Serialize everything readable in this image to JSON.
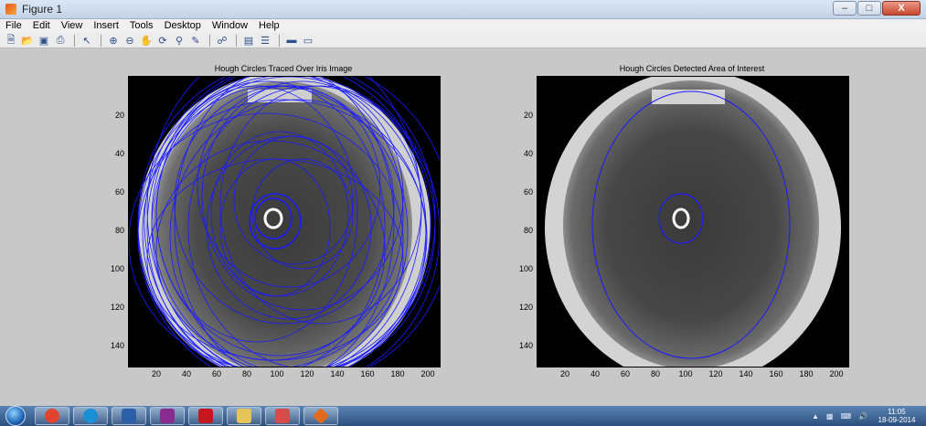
{
  "window": {
    "title": "Figure 1",
    "buttons": {
      "minimize": "–",
      "maximize": "□",
      "close": "X"
    }
  },
  "menu": [
    "File",
    "Edit",
    "View",
    "Insert",
    "Tools",
    "Desktop",
    "Window",
    "Help"
  ],
  "toolbar_icons": [
    "new-figure-icon",
    "open-file-icon",
    "save-icon",
    "print-icon",
    "arrow-icon",
    "zoom-in-icon",
    "zoom-out-icon",
    "pan-icon",
    "rotate-icon",
    "data-cursor-icon",
    "brush-icon",
    "link-icon",
    "colorbar-icon",
    "legend-icon",
    "hide-plot-tools-icon",
    "show-plot-tools-icon"
  ],
  "plots": [
    {
      "title": "Hough Circles Traced Over Iris Image",
      "x_ticks": [
        "20",
        "40",
        "60",
        "80",
        "100",
        "120",
        "140",
        "160",
        "180",
        "200"
      ],
      "y_ticks": [
        "20",
        "40",
        "60",
        "80",
        "100",
        "120",
        "140"
      ],
      "xlim": [
        0,
        210
      ],
      "ylim": [
        0,
        150
      ]
    },
    {
      "title": "Hough Circles Detected Area of Interest",
      "x_ticks": [
        "20",
        "40",
        "60",
        "80",
        "100",
        "120",
        "140",
        "160",
        "180",
        "200"
      ],
      "y_ticks": [
        "20",
        "40",
        "60",
        "80",
        "100",
        "120",
        "140"
      ],
      "xlim": [
        0,
        210
      ],
      "ylim": [
        0,
        150
      ]
    }
  ],
  "taskbar": {
    "apps": [
      {
        "icon": "chrome-icon",
        "color": "#e0442f"
      },
      {
        "icon": "skype-icon",
        "color": "#1a8fd6"
      },
      {
        "icon": "word-icon",
        "color": "#2b5fa8"
      },
      {
        "icon": "winrar-icon",
        "color": "#8b2a8f"
      },
      {
        "icon": "acrobat-icon",
        "color": "#c4161c"
      },
      {
        "icon": "file-explorer-icon",
        "color": "#e6c45a"
      },
      {
        "icon": "image-viewer-icon",
        "color": "#d94b4b"
      },
      {
        "icon": "matlab-icon",
        "color": "#e26a1d"
      }
    ],
    "clock_time": "11:05",
    "clock_date": "18-09-2014"
  }
}
